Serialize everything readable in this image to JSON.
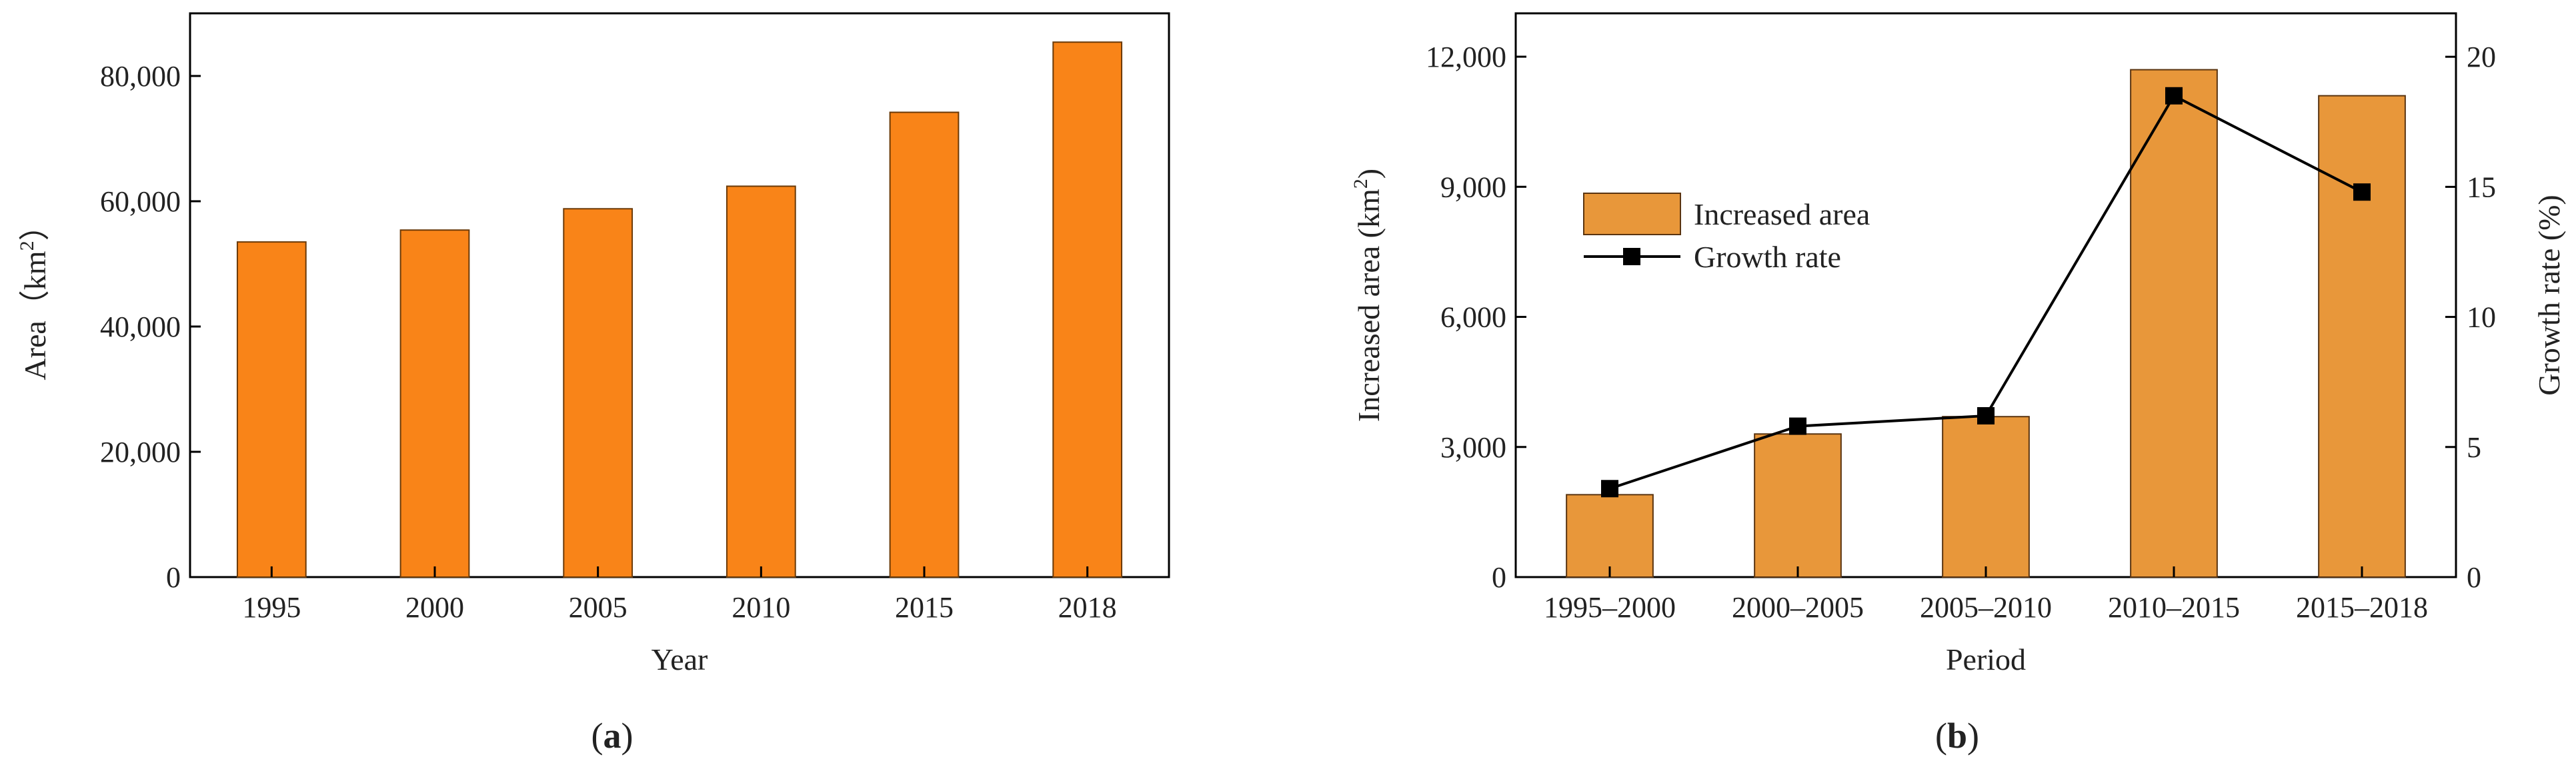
{
  "panels": [
    {
      "label_open": "(",
      "label_letter": "a",
      "label_close": ")"
    },
    {
      "label_open": "(",
      "label_letter": "b",
      "label_close": ")"
    }
  ],
  "chart_data": [
    {
      "type": "bar",
      "title": "",
      "xlabel": "Year",
      "ylabel_main": "Area（km",
      "ylabel_sup": "2",
      "ylabel_tail": "）",
      "categories": [
        "1995",
        "2000",
        "2005",
        "2010",
        "2015",
        "2018"
      ],
      "values": [
        53500,
        55400,
        58800,
        62400,
        74200,
        85400
      ],
      "ylim": [
        0,
        90000
      ],
      "yticks": [
        0,
        20000,
        40000,
        60000,
        80000
      ],
      "ytick_labels": [
        "0",
        "20,000",
        "40,000",
        "60,000",
        "80,000"
      ],
      "grid": false,
      "colors": {
        "bar": "#F98418",
        "edge": "#6b3a08"
      }
    },
    {
      "type": "bar",
      "title": "",
      "xlabel": "Period",
      "ylabel_main": "Increased area (km",
      "ylabel_sup": "2",
      "ylabel_tail": ")",
      "ylabel_right": "Growth rate (%)",
      "categories": [
        "1995–2000",
        "2000–2005",
        "2005–2010",
        "2010–2015",
        "2015–2018"
      ],
      "series": [
        {
          "name": "Increased area",
          "kind": "bar",
          "axis": "left",
          "values": [
            1900,
            3300,
            3700,
            11700,
            11100
          ]
        },
        {
          "name": "Growth rate",
          "kind": "line",
          "axis": "right",
          "values": [
            3.4,
            5.8,
            6.2,
            18.5,
            14.8
          ]
        }
      ],
      "ylim_left": [
        0,
        13000
      ],
      "yticks_left": [
        0,
        3000,
        6000,
        9000,
        12000
      ],
      "ytick_labels_left": [
        "0",
        "3,000",
        "6,000",
        "9,000",
        "12,000"
      ],
      "ylim_right": [
        0,
        21.67
      ],
      "yticks_right": [
        0,
        5,
        10,
        15,
        20
      ],
      "ytick_labels_right": [
        "0",
        "5",
        "10",
        "15",
        "20"
      ],
      "legend_placement": "upper-left",
      "grid": false,
      "colors": {
        "bar": "#E8973A",
        "edge": "#5a3410",
        "line": "#000000"
      }
    }
  ]
}
